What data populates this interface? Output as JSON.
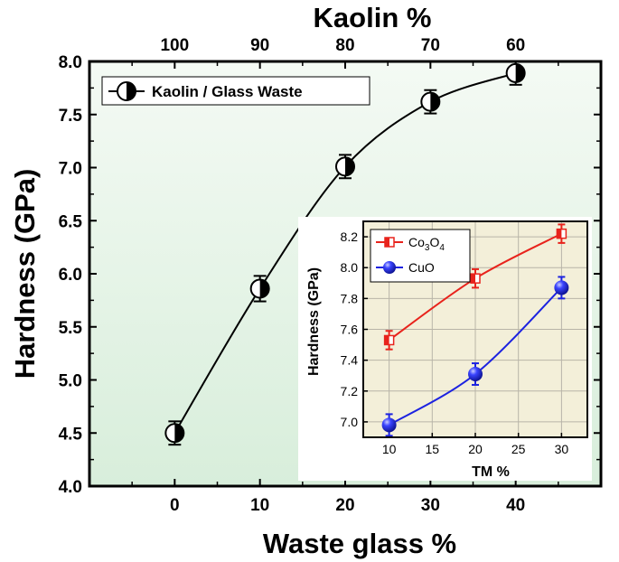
{
  "chart_data": [
    {
      "type": "line",
      "xlabel": "Waste glass %",
      "x2label": "Kaolin %",
      "ylabel": "Hardness (GPa)",
      "x": [
        0,
        10,
        20,
        30,
        40
      ],
      "xlim": [
        -10,
        50
      ],
      "xticks": [
        "0",
        "10",
        "20",
        "30",
        "40"
      ],
      "x2ticks": [
        "100",
        "90",
        "80",
        "70",
        "60"
      ],
      "ylim": [
        4.0,
        8.0
      ],
      "yticks": [
        "4.0",
        "4.5",
        "5.0",
        "5.5",
        "6.0",
        "6.5",
        "7.0",
        "7.5",
        "8.0"
      ],
      "legend_position": "top-left",
      "background": "#e8f4e8",
      "series": [
        {
          "name": "Kaolin / Glass Waste",
          "values": [
            4.5,
            5.86,
            7.01,
            7.62,
            7.89
          ],
          "errors": [
            0.11,
            0.12,
            0.11,
            0.11,
            0.11
          ],
          "color": "#000000",
          "marker": "half-filled-circle"
        }
      ]
    },
    {
      "type": "line",
      "xlabel": "TM %",
      "ylabel": "Hardness (GPa)",
      "x": [
        10,
        20,
        30
      ],
      "xlim": [
        7,
        33
      ],
      "xticks": [
        "10",
        "15",
        "20",
        "25",
        "30"
      ],
      "ylim": [
        6.9,
        8.3
      ],
      "yticks": [
        "7.0",
        "7.2",
        "7.4",
        "7.6",
        "7.8",
        "8.0",
        "8.2"
      ],
      "legend_position": "top-left",
      "background": "#f3efd9",
      "grid": true,
      "series": [
        {
          "name": "Co3O4",
          "values": [
            7.53,
            7.93,
            8.22
          ],
          "errors": [
            0.06,
            0.06,
            0.06
          ],
          "color": "#e8231c",
          "marker": "half-filled-square"
        },
        {
          "name": "CuO",
          "values": [
            6.98,
            7.31,
            7.87
          ],
          "errors": [
            0.07,
            0.07,
            0.07
          ],
          "color": "#1c22e0",
          "marker": "sphere"
        }
      ]
    }
  ],
  "legend_labels": {
    "main": "Kaolin / Glass Waste",
    "inset_co3o4_prefix": "Co",
    "inset_co3o4_sub1": "3",
    "inset_co3o4_mid": "O",
    "inset_co3o4_sub2": "4",
    "inset_cuo": "CuO"
  }
}
